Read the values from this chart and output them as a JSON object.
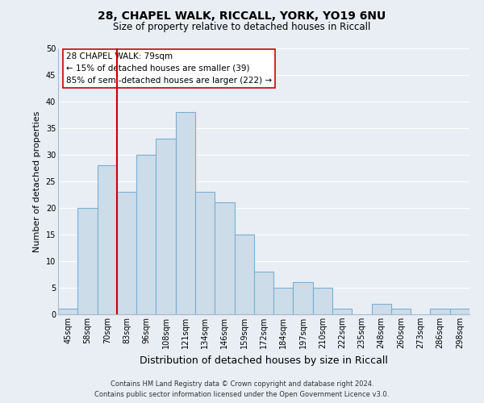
{
  "title_line1": "28, CHAPEL WALK, RICCALL, YORK, YO19 6NU",
  "title_line2": "Size of property relative to detached houses in Riccall",
  "xlabel": "Distribution of detached houses by size in Riccall",
  "ylabel": "Number of detached properties",
  "bar_labels": [
    "45sqm",
    "58sqm",
    "70sqm",
    "83sqm",
    "96sqm",
    "108sqm",
    "121sqm",
    "134sqm",
    "146sqm",
    "159sqm",
    "172sqm",
    "184sqm",
    "197sqm",
    "210sqm",
    "222sqm",
    "235sqm",
    "248sqm",
    "260sqm",
    "273sqm",
    "286sqm",
    "298sqm"
  ],
  "bar_values": [
    1,
    20,
    28,
    23,
    30,
    33,
    38,
    23,
    21,
    15,
    8,
    5,
    6,
    5,
    1,
    0,
    2,
    1,
    0,
    1,
    1
  ],
  "bar_color": "#ccdce8",
  "bar_edge_color": "#7bafd4",
  "vline_x_index": 2,
  "vline_color": "#cc0000",
  "ylim": [
    0,
    50
  ],
  "annotation_title": "28 CHAPEL WALK: 79sqm",
  "annotation_line1": "← 15% of detached houses are smaller (39)",
  "annotation_line2": "85% of semi-detached houses are larger (222) →",
  "annotation_box_color": "#ffffff",
  "annotation_box_edge": "#cc0000",
  "footer_line1": "Contains HM Land Registry data © Crown copyright and database right 2024.",
  "footer_line2": "Contains public sector information licensed under the Open Government Licence v3.0.",
  "background_color": "#e8eef4",
  "grid_color": "#ffffff",
  "title_fontsize": 10,
  "subtitle_fontsize": 8.5,
  "xlabel_fontsize": 9,
  "ylabel_fontsize": 8,
  "tick_fontsize": 7,
  "footer_fontsize": 6,
  "annot_fontsize": 7.5
}
